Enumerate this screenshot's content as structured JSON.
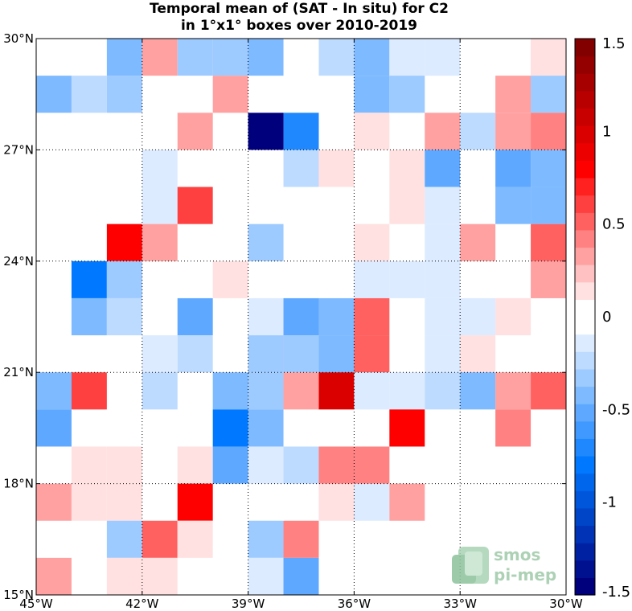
{
  "chart_data": {
    "type": "heatmap",
    "title": [
      "Temporal mean of (SAT - In situ) for C2",
      "in 1°x1° boxes over 2010-2019"
    ],
    "x_ticks": [
      {
        "value": -45,
        "label": "45°W"
      },
      {
        "value": -42,
        "label": "42°W"
      },
      {
        "value": -39,
        "label": "39°W"
      },
      {
        "value": -36,
        "label": "36°W"
      },
      {
        "value": -33,
        "label": "33°W"
      },
      {
        "value": -30,
        "label": "30°W"
      }
    ],
    "y_ticks": [
      {
        "value": 15,
        "label": "15°N"
      },
      {
        "value": 18,
        "label": "18°N"
      },
      {
        "value": 21,
        "label": "21°N"
      },
      {
        "value": 24,
        "label": "24°N"
      },
      {
        "value": 27,
        "label": "27°N"
      },
      {
        "value": 30,
        "label": "30°N"
      }
    ],
    "xlim": [
      -45,
      -30
    ],
    "ylim": [
      15,
      30
    ],
    "grid": true,
    "colorbar": {
      "range": [
        -1.5,
        1.5
      ],
      "levels": 32,
      "colormap": "blue-white-red",
      "ticks": [
        {
          "value": 1.5,
          "label": "1.5"
        },
        {
          "value": 1,
          "label": "1"
        },
        {
          "value": 0.5,
          "label": "0.5"
        },
        {
          "value": 0,
          "label": "0"
        },
        {
          "value": -0.5,
          "label": "-0.5"
        },
        {
          "value": -1,
          "label": "-1"
        },
        {
          "value": -1.5,
          "label": "-1.5"
        }
      ]
    },
    "cells": [
      {
        "lon": -43,
        "lat": 29,
        "value": -0.45
      },
      {
        "lon": -42,
        "lat": 29,
        "value": 0.35
      },
      {
        "lon": -41,
        "lat": 29,
        "value": -0.3
      },
      {
        "lon": -40,
        "lat": 29,
        "value": -0.3
      },
      {
        "lon": -39,
        "lat": 29,
        "value": -0.45
      },
      {
        "lon": -37,
        "lat": 29,
        "value": -0.25
      },
      {
        "lon": -36,
        "lat": 29,
        "value": -0.45
      },
      {
        "lon": -35,
        "lat": 29,
        "value": -0.15
      },
      {
        "lon": -34,
        "lat": 29,
        "value": -0.15
      },
      {
        "lon": -31,
        "lat": 29,
        "value": 0.15
      },
      {
        "lon": -45,
        "lat": 28,
        "value": -0.45
      },
      {
        "lon": -44,
        "lat": 28,
        "value": -0.25
      },
      {
        "lon": -43,
        "lat": 28,
        "value": -0.35
      },
      {
        "lon": -40,
        "lat": 28,
        "value": 0.3
      },
      {
        "lon": -36,
        "lat": 28,
        "value": -0.45
      },
      {
        "lon": -35,
        "lat": 28,
        "value": -0.35
      },
      {
        "lon": -32,
        "lat": 28,
        "value": 0.3
      },
      {
        "lon": -31,
        "lat": 28,
        "value": -0.35
      },
      {
        "lon": -41,
        "lat": 27,
        "value": 0.3
      },
      {
        "lon": -39,
        "lat": 27,
        "value": -1.5
      },
      {
        "lon": -38,
        "lat": 27,
        "value": -0.75
      },
      {
        "lon": -36,
        "lat": 27,
        "value": 0.15
      },
      {
        "lon": -34,
        "lat": 27,
        "value": 0.3
      },
      {
        "lon": -33,
        "lat": 27,
        "value": -0.25
      },
      {
        "lon": -32,
        "lat": 27,
        "value": 0.3
      },
      {
        "lon": -31,
        "lat": 27,
        "value": 0.4
      },
      {
        "lon": -42,
        "lat": 26,
        "value": -0.15
      },
      {
        "lon": -38,
        "lat": 26,
        "value": -0.25
      },
      {
        "lon": -37,
        "lat": 26,
        "value": 0.15
      },
      {
        "lon": -35,
        "lat": 26,
        "value": 0.15
      },
      {
        "lon": -34,
        "lat": 26,
        "value": -0.55
      },
      {
        "lon": -32,
        "lat": 26,
        "value": -0.55
      },
      {
        "lon": -31,
        "lat": 26,
        "value": -0.4
      },
      {
        "lon": -42,
        "lat": 25,
        "value": -0.15
      },
      {
        "lon": -41,
        "lat": 25,
        "value": 0.65
      },
      {
        "lon": -35,
        "lat": 25,
        "value": 0.15
      },
      {
        "lon": -34,
        "lat": 25,
        "value": -0.15
      },
      {
        "lon": -32,
        "lat": 25,
        "value": -0.45
      },
      {
        "lon": -31,
        "lat": 25,
        "value": -0.4
      },
      {
        "lon": -43,
        "lat": 24,
        "value": 0.8
      },
      {
        "lon": -42,
        "lat": 24,
        "value": 0.3
      },
      {
        "lon": -39,
        "lat": 24,
        "value": -0.35
      },
      {
        "lon": -36,
        "lat": 24,
        "value": 0.15
      },
      {
        "lon": -34,
        "lat": 24,
        "value": -0.15
      },
      {
        "lon": -33,
        "lat": 24,
        "value": 0.3
      },
      {
        "lon": -31,
        "lat": 24,
        "value": 0.55
      },
      {
        "lon": -44,
        "lat": 23,
        "value": -0.8
      },
      {
        "lon": -43,
        "lat": 23,
        "value": -0.35
      },
      {
        "lon": -40,
        "lat": 23,
        "value": 0.15
      },
      {
        "lon": -36,
        "lat": 23,
        "value": -0.15
      },
      {
        "lon": -35,
        "lat": 23,
        "value": -0.15
      },
      {
        "lon": -34,
        "lat": 23,
        "value": -0.15
      },
      {
        "lon": -31,
        "lat": 23,
        "value": 0.3
      },
      {
        "lon": -44,
        "lat": 22,
        "value": -0.4
      },
      {
        "lon": -43,
        "lat": 22,
        "value": -0.25
      },
      {
        "lon": -41,
        "lat": 22,
        "value": -0.55
      },
      {
        "lon": -39,
        "lat": 22,
        "value": -0.15
      },
      {
        "lon": -38,
        "lat": 22,
        "value": -0.55
      },
      {
        "lon": -37,
        "lat": 22,
        "value": -0.45
      },
      {
        "lon": -36,
        "lat": 22,
        "value": 0.55
      },
      {
        "lon": -34,
        "lat": 22,
        "value": -0.15
      },
      {
        "lon": -33,
        "lat": 22,
        "value": -0.15
      },
      {
        "lon": -32,
        "lat": 22,
        "value": 0.15
      },
      {
        "lon": -42,
        "lat": 21,
        "value": -0.15
      },
      {
        "lon": -41,
        "lat": 21,
        "value": -0.25
      },
      {
        "lon": -39,
        "lat": 21,
        "value": -0.3
      },
      {
        "lon": -38,
        "lat": 21,
        "value": -0.35
      },
      {
        "lon": -37,
        "lat": 21,
        "value": -0.45
      },
      {
        "lon": -36,
        "lat": 21,
        "value": 0.55
      },
      {
        "lon": -34,
        "lat": 21,
        "value": -0.15
      },
      {
        "lon": -33,
        "lat": 21,
        "value": 0.15
      },
      {
        "lon": -45,
        "lat": 20,
        "value": -0.45
      },
      {
        "lon": -44,
        "lat": 20,
        "value": 0.65
      },
      {
        "lon": -42,
        "lat": 20,
        "value": -0.25
      },
      {
        "lon": -40,
        "lat": 20,
        "value": -0.45
      },
      {
        "lon": -39,
        "lat": 20,
        "value": -0.35
      },
      {
        "lon": -38,
        "lat": 20,
        "value": 0.3
      },
      {
        "lon": -37,
        "lat": 20,
        "value": 0.95
      },
      {
        "lon": -36,
        "lat": 20,
        "value": -0.15
      },
      {
        "lon": -35,
        "lat": 20,
        "value": -0.15
      },
      {
        "lon": -34,
        "lat": 20,
        "value": -0.25
      },
      {
        "lon": -33,
        "lat": 20,
        "value": -0.45
      },
      {
        "lon": -32,
        "lat": 20,
        "value": 0.3
      },
      {
        "lon": -31,
        "lat": 20,
        "value": 0.55
      },
      {
        "lon": -45,
        "lat": 19,
        "value": -0.55
      },
      {
        "lon": -40,
        "lat": 19,
        "value": -0.8
      },
      {
        "lon": -39,
        "lat": 19,
        "value": -0.45
      },
      {
        "lon": -35,
        "lat": 19,
        "value": 0.8
      },
      {
        "lon": -32,
        "lat": 19,
        "value": 0.4
      },
      {
        "lon": -44,
        "lat": 18,
        "value": 0.15
      },
      {
        "lon": -43,
        "lat": 18,
        "value": 0.15
      },
      {
        "lon": -41,
        "lat": 18,
        "value": 0.15
      },
      {
        "lon": -40,
        "lat": 18,
        "value": -0.55
      },
      {
        "lon": -39,
        "lat": 18,
        "value": -0.15
      },
      {
        "lon": -38,
        "lat": 18,
        "value": -0.25
      },
      {
        "lon": -37,
        "lat": 18,
        "value": 0.4
      },
      {
        "lon": -36,
        "lat": 18,
        "value": 0.4
      },
      {
        "lon": -45,
        "lat": 17,
        "value": 0.3
      },
      {
        "lon": -44,
        "lat": 17,
        "value": 0.15
      },
      {
        "lon": -43,
        "lat": 17,
        "value": 0.15
      },
      {
        "lon": -41,
        "lat": 17,
        "value": 0.8
      },
      {
        "lon": -37,
        "lat": 17,
        "value": 0.15
      },
      {
        "lon": -36,
        "lat": 17,
        "value": -0.15
      },
      {
        "lon": -35,
        "lat": 17,
        "value": 0.3
      },
      {
        "lon": -43,
        "lat": 16,
        "value": -0.35
      },
      {
        "lon": -42,
        "lat": 16,
        "value": 0.55
      },
      {
        "lon": -41,
        "lat": 16,
        "value": 0.15
      },
      {
        "lon": -39,
        "lat": 16,
        "value": -0.35
      },
      {
        "lon": -38,
        "lat": 16,
        "value": 0.4
      },
      {
        "lon": -45,
        "lat": 15,
        "value": 0.3
      },
      {
        "lon": -43,
        "lat": 15,
        "value": 0.15
      },
      {
        "lon": -42,
        "lat": 15,
        "value": 0.15
      },
      {
        "lon": -39,
        "lat": 15,
        "value": -0.15
      },
      {
        "lon": -38,
        "lat": 15,
        "value": -0.55
      }
    ]
  },
  "logo": {
    "line1": "smos",
    "line2": "pi-mep"
  }
}
